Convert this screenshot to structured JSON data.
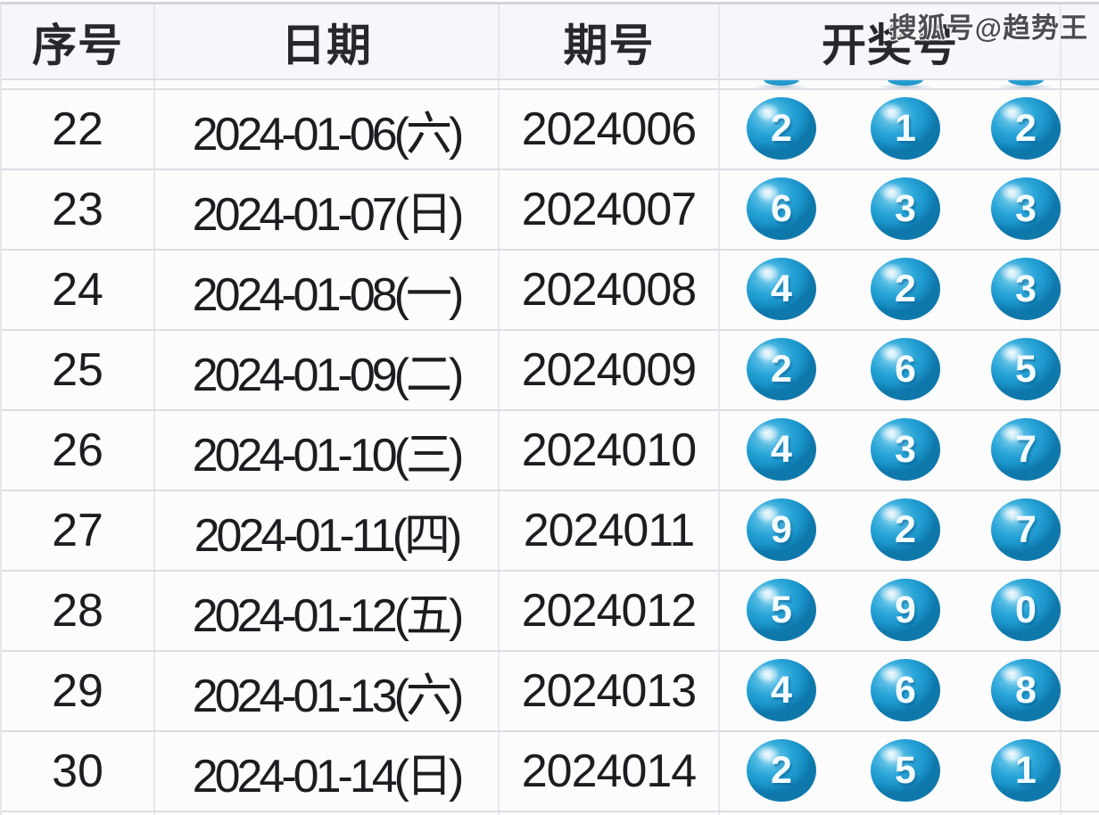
{
  "chart_data": {
    "type": "table",
    "columns": [
      {
        "id": "serial",
        "label": "序号"
      },
      {
        "id": "date",
        "label": "日期"
      },
      {
        "id": "issue",
        "label": "期号"
      },
      {
        "id": "draw",
        "label": "开奖号"
      }
    ],
    "rows": [
      {
        "serial": "22",
        "date": "2024-01-06(六)",
        "issue": "2024006",
        "balls": [
          "2",
          "1",
          "2"
        ]
      },
      {
        "serial": "23",
        "date": "2024-01-07(日)",
        "issue": "2024007",
        "balls": [
          "6",
          "3",
          "3"
        ]
      },
      {
        "serial": "24",
        "date": "2024-01-08(一)",
        "issue": "2024008",
        "balls": [
          "4",
          "2",
          "3"
        ]
      },
      {
        "serial": "25",
        "date": "2024-01-09(二)",
        "issue": "2024009",
        "balls": [
          "2",
          "6",
          "5"
        ]
      },
      {
        "serial": "26",
        "date": "2024-01-10(三)",
        "issue": "2024010",
        "balls": [
          "4",
          "3",
          "7"
        ]
      },
      {
        "serial": "27",
        "date": "2024-01-11(四)",
        "issue": "2024011",
        "balls": [
          "9",
          "2",
          "7"
        ]
      },
      {
        "serial": "28",
        "date": "2024-01-12(五)",
        "issue": "2024012",
        "balls": [
          "5",
          "9",
          "0"
        ]
      },
      {
        "serial": "29",
        "date": "2024-01-13(六)",
        "issue": "2024013",
        "balls": [
          "4",
          "6",
          "8"
        ]
      },
      {
        "serial": "30",
        "date": "2024-01-14(日)",
        "issue": "2024014",
        "balls": [
          "2",
          "5",
          "1"
        ]
      }
    ]
  },
  "watermark": {
    "text": "搜狐号@趋势王"
  },
  "colors": {
    "ball_fill": "#29a5d8",
    "ball_fill_dark": "#1180b4",
    "ball_highlight": "#bde8f7",
    "grid_line": "#dcdde3",
    "header_bg": "#f6f7fa",
    "row_bg": "#fcfcfd",
    "body_text": "#1c1d21",
    "watermark_text": "#4b4b52"
  }
}
